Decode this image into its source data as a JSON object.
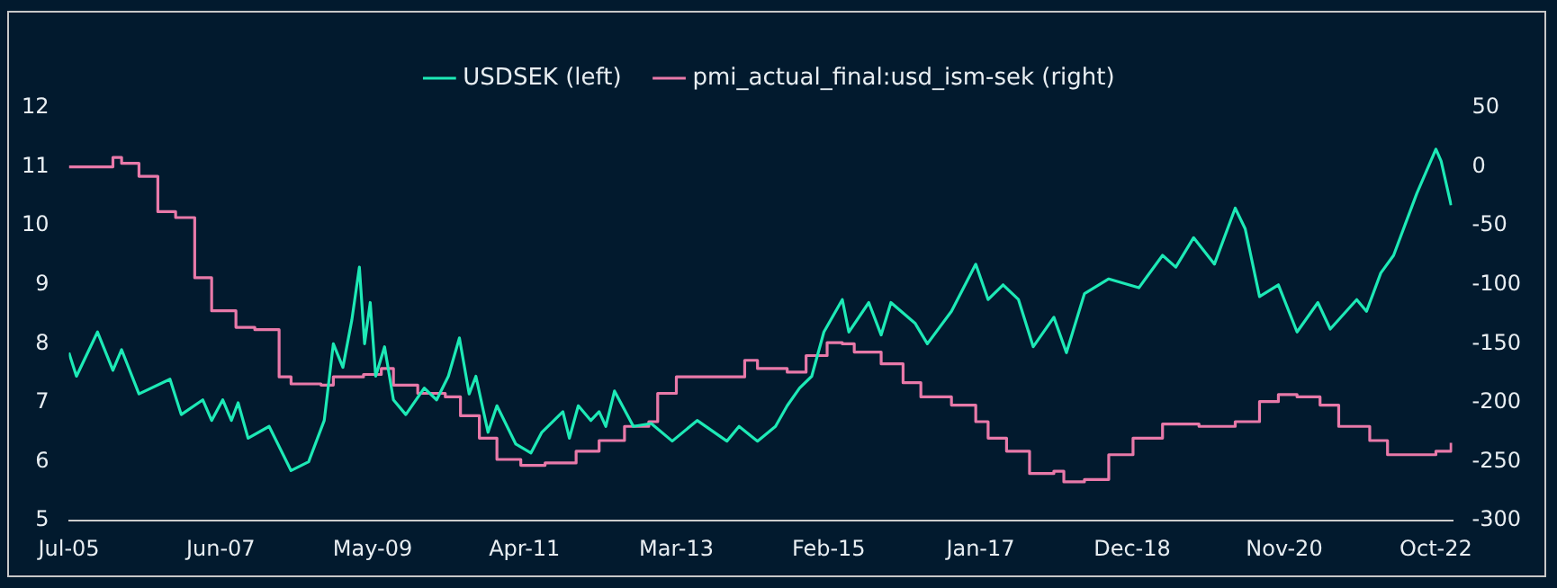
{
  "chart_data": {
    "type": "line",
    "legend": "top",
    "xlim": [
      "2005-07-01",
      "2022-12-15"
    ],
    "xticks": [
      {
        "value": "2005-07",
        "label": "Jul-05"
      },
      {
        "value": "2007-06",
        "label": "Jun-07"
      },
      {
        "value": "2009-05",
        "label": "May-09"
      },
      {
        "value": "2011-04",
        "label": "Apr-11"
      },
      {
        "value": "2013-03",
        "label": "Mar-13"
      },
      {
        "value": "2015-02",
        "label": "Feb-15"
      },
      {
        "value": "2017-01",
        "label": "Jan-17"
      },
      {
        "value": "2018-12",
        "label": "Dec-18"
      },
      {
        "value": "2020-11",
        "label": "Nov-20"
      },
      {
        "value": "2022-10",
        "label": "Oct-22"
      }
    ],
    "ylim": [
      5,
      12
    ],
    "yticks": [
      5,
      6,
      7,
      8,
      9,
      10,
      11,
      12
    ],
    "y2lim": [
      -300,
      50
    ],
    "y2ticks": [
      -300,
      -250,
      -200,
      -150,
      -100,
      -50,
      0,
      50
    ],
    "series": [
      {
        "name": "USDSEK (left)",
        "type": "line",
        "color": "#1de9b6",
        "x": [
          "2005-07-01",
          "2005-08-05",
          "2005-11-10",
          "2006-01-20",
          "2006-03-01",
          "2006-05-20",
          "2006-10-10",
          "2006-12-01",
          "2007-03-10",
          "2007-04-20",
          "2007-06-10",
          "2007-07-20",
          "2007-08-20",
          "2007-10-05",
          "2008-01-10",
          "2008-04-20",
          "2008-07-10",
          "2008-09-20",
          "2008-11-01",
          "2008-12-15",
          "2009-01-25",
          "2009-03-01",
          "2009-03-25",
          "2009-04-20",
          "2009-05-15",
          "2009-06-25",
          "2009-08-05",
          "2009-10-01",
          "2009-12-25",
          "2010-02-20",
          "2010-04-15",
          "2010-06-05",
          "2010-07-20",
          "2010-08-20",
          "2010-10-15",
          "2010-11-25",
          "2011-02-20",
          "2011-05-01",
          "2011-06-20",
          "2011-09-25",
          "2011-10-25",
          "2011-12-05",
          "2012-02-01",
          "2012-03-10",
          "2012-04-10",
          "2012-05-20",
          "2012-08-15",
          "2012-11-05",
          "2013-02-10",
          "2013-06-05",
          "2013-10-20",
          "2013-12-15",
          "2014-03-10",
          "2014-06-01",
          "2014-07-25",
          "2014-09-20",
          "2014-11-15",
          "2015-01-10",
          "2015-04-05",
          "2015-05-05",
          "2015-08-05",
          "2015-10-01",
          "2015-11-15",
          "2016-03-05",
          "2016-05-01",
          "2016-08-20",
          "2016-12-10",
          "2017-02-05",
          "2017-04-15",
          "2017-06-25",
          "2017-09-01",
          "2017-12-05",
          "2018-02-01",
          "2018-04-25",
          "2018-08-15",
          "2019-01-01",
          "2019-04-20",
          "2019-06-20",
          "2019-09-10",
          "2019-12-15",
          "2020-03-20",
          "2020-05-05",
          "2020-07-10",
          "2020-10-05",
          "2020-12-30",
          "2021-04-05",
          "2021-06-01",
          "2021-10-01",
          "2021-11-15",
          "2022-01-20",
          "2022-03-20",
          "2022-05-15",
          "2022-07-05",
          "2022-10-01",
          "2022-10-25",
          "2022-12-10"
        ],
        "values": [
          7.85,
          7.45,
          8.2,
          7.55,
          7.9,
          7.15,
          7.4,
          6.8,
          7.05,
          6.7,
          7.05,
          6.7,
          7.0,
          6.4,
          6.6,
          5.85,
          6.0,
          6.7,
          8.0,
          7.6,
          8.4,
          9.3,
          8.0,
          8.7,
          7.45,
          7.95,
          7.05,
          6.8,
          7.25,
          7.05,
          7.45,
          8.1,
          7.15,
          7.45,
          6.5,
          6.95,
          6.3,
          6.15,
          6.5,
          6.85,
          6.4,
          6.95,
          6.7,
          6.85,
          6.6,
          7.2,
          6.6,
          6.65,
          6.35,
          6.7,
          6.35,
          6.6,
          6.35,
          6.6,
          6.95,
          7.25,
          7.45,
          8.2,
          8.75,
          8.2,
          8.7,
          8.15,
          8.7,
          8.35,
          8.0,
          8.55,
          9.35,
          8.75,
          9.0,
          8.75,
          7.95,
          8.45,
          7.85,
          8.85,
          9.1,
          8.95,
          9.5,
          9.3,
          9.8,
          9.35,
          10.3,
          9.95,
          8.8,
          9.0,
          8.2,
          8.7,
          8.25,
          8.75,
          8.55,
          9.2,
          9.5,
          10.05,
          10.55,
          11.3,
          11.1,
          10.35
        ]
      },
      {
        "name": "pmi_actual_final:usd_ism-sek (right)",
        "type": "step",
        "axis": "y2",
        "color": "#e879a9",
        "x": [
          "2005-07-01",
          "2005-09-01",
          "2006-01-20",
          "2006-03-01",
          "2006-05-20",
          "2006-08-15",
          "2006-11-05",
          "2007-02-01",
          "2007-04-20",
          "2007-08-10",
          "2007-11-05",
          "2008-02-25",
          "2008-04-20",
          "2008-09-05",
          "2008-11-01",
          "2009-03-20",
          "2009-06-10",
          "2009-08-05",
          "2009-11-25",
          "2010-04-01",
          "2010-06-10",
          "2010-09-05",
          "2010-11-25",
          "2011-03-15",
          "2011-07-05",
          "2011-11-25",
          "2012-03-10",
          "2012-07-05",
          "2012-10-25",
          "2012-12-05",
          "2013-03-01",
          "2013-07-15",
          "2014-01-10",
          "2014-03-10",
          "2014-07-25",
          "2014-10-20",
          "2015-01-25",
          "2015-04-05",
          "2015-05-30",
          "2015-10-01",
          "2016-01-10",
          "2016-04-01",
          "2016-08-20",
          "2016-12-10",
          "2017-02-05",
          "2017-05-01",
          "2017-08-15",
          "2017-12-05",
          "2018-01-20",
          "2018-04-25",
          "2018-08-15",
          "2018-12-05",
          "2019-04-20",
          "2019-10-05",
          "2020-03-20",
          "2020-07-10",
          "2020-10-05",
          "2020-12-30",
          "2021-04-15",
          "2021-07-10",
          "2021-11-30",
          "2022-02-20",
          "2022-07-05",
          "2022-10-01",
          "2022-12-10"
        ],
        "values": [
          0,
          0,
          8,
          3,
          -8,
          -38,
          -43,
          -94,
          -122,
          -136,
          -138,
          -178,
          -184,
          -185,
          -178,
          -176,
          -171,
          -185,
          -192,
          -195,
          -211,
          -230,
          -248,
          -253,
          -251,
          -241,
          -232,
          -220,
          -216,
          -192,
          -178,
          -178,
          -164,
          -171,
          -174,
          -160,
          -149,
          -150,
          -157,
          -167,
          -183,
          -195,
          -202,
          -216,
          -230,
          -241,
          -260,
          -258,
          -267,
          -265,
          -244,
          -230,
          -218,
          -220,
          -216,
          -199,
          -193,
          -195,
          -202,
          -220,
          -232,
          -244,
          -244,
          -241,
          -234
        ]
      }
    ]
  }
}
